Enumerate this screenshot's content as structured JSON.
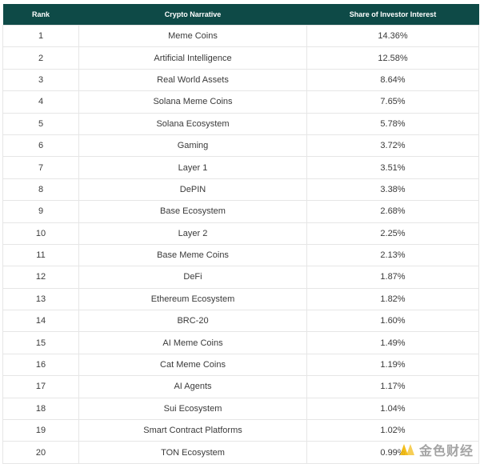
{
  "chart_data": {
    "type": "table",
    "columns": [
      "Rank",
      "Crypto Narrative",
      "Share of Investor Interest"
    ],
    "rows": [
      [
        "1",
        "Meme Coins",
        "14.36%"
      ],
      [
        "2",
        "Artificial Intelligence",
        "12.58%"
      ],
      [
        "3",
        "Real World Assets",
        "8.64%"
      ],
      [
        "4",
        "Solana Meme Coins",
        "7.65%"
      ],
      [
        "5",
        "Solana Ecosystem",
        "5.78%"
      ],
      [
        "6",
        "Gaming",
        "3.72%"
      ],
      [
        "7",
        "Layer 1",
        "3.51%"
      ],
      [
        "8",
        "DePIN",
        "3.38%"
      ],
      [
        "9",
        "Base Ecosystem",
        "2.68%"
      ],
      [
        "10",
        "Layer 2",
        "2.25%"
      ],
      [
        "11",
        "Base Meme Coins",
        "2.13%"
      ],
      [
        "12",
        "DeFi",
        "1.87%"
      ],
      [
        "13",
        "Ethereum Ecosystem",
        "1.82%"
      ],
      [
        "14",
        "BRC-20",
        "1.60%"
      ],
      [
        "15",
        "AI Meme Coins",
        "1.49%"
      ],
      [
        "16",
        "Cat Meme Coins",
        "1.19%"
      ],
      [
        "17",
        "AI Agents",
        "1.17%"
      ],
      [
        "18",
        "Sui Ecosystem",
        "1.04%"
      ],
      [
        "19",
        "Smart Contract Platforms",
        "1.02%"
      ],
      [
        "20",
        "TON Ecosystem",
        "0.99%"
      ]
    ]
  },
  "colors": {
    "header_bg": "#0e4a47",
    "header_text": "#ffffff",
    "cell_text": "#3a3a3a",
    "grid": "#e6e6e6",
    "watermark_logo": "#f2b705"
  },
  "watermark": {
    "text": "金色财经",
    "icon": "jinse-logo-icon"
  }
}
